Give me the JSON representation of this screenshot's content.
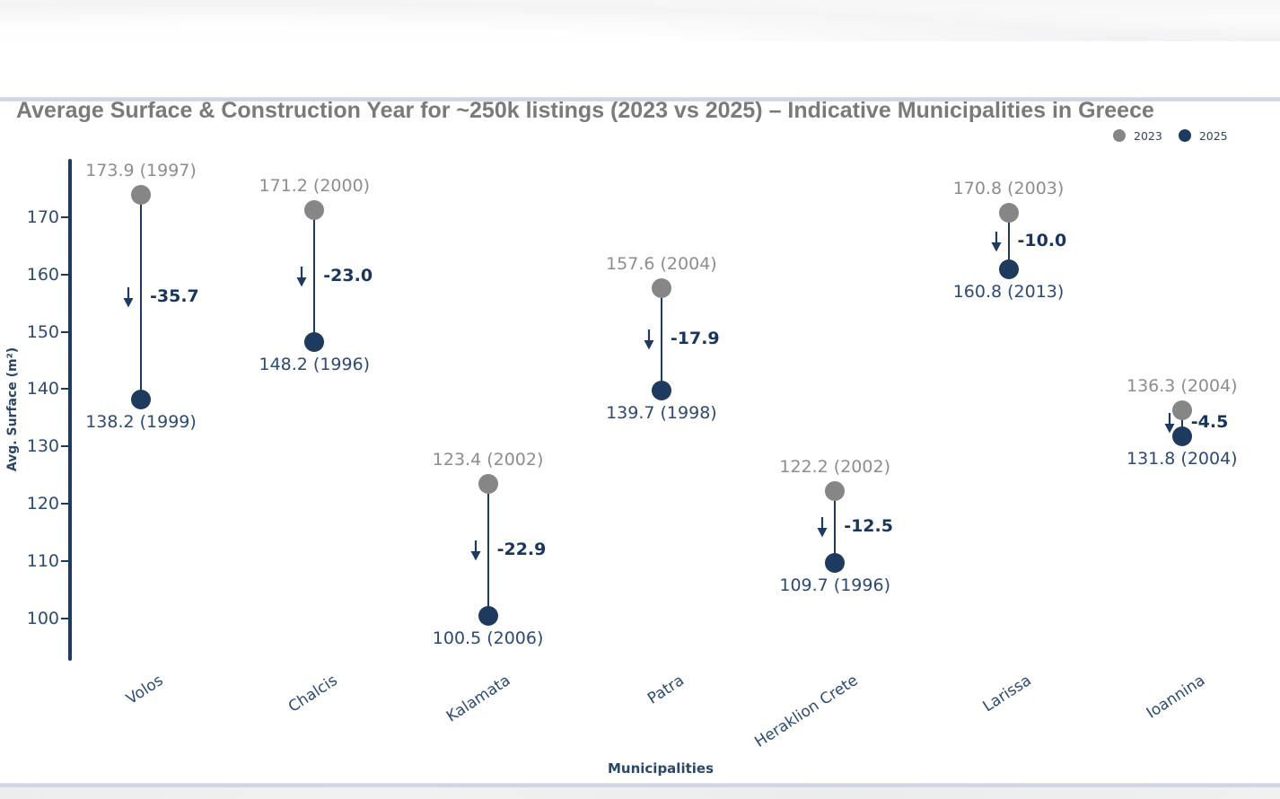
{
  "window": {
    "title": "Average Surface & Construction Year for ~250k listings (2023 vs 2025) – Indicative Municipalities in Greece"
  },
  "legend": {
    "items": [
      {
        "label": "2023",
        "color": "#868686"
      },
      {
        "label": "2025",
        "color": "#1f3a5f"
      }
    ]
  },
  "chart_data": {
    "type": "dumbbell",
    "title": "Average Surface & Construction Year for ~250k listings (2023 vs 2025) – Indicative Municipalities in Greece",
    "xlabel": "Municipalities",
    "ylabel": "Avg. Surface (m²)",
    "categories": [
      "Volos",
      "Chalcis",
      "Kalamata",
      "Patra",
      "Heraklion Crete",
      "Larissa",
      "Ioannina"
    ],
    "series": [
      {
        "name": "2023",
        "color": "#868686",
        "values": [
          173.9,
          171.2,
          123.4,
          157.6,
          122.2,
          170.8,
          136.3
        ],
        "construction_years": [
          1997,
          2000,
          2002,
          2004,
          2002,
          2003,
          2004
        ],
        "point_labels": [
          "173.9 (1997)",
          "171.2 (2000)",
          "123.4 (2002)",
          "157.6 (2004)",
          "122.2 (2002)",
          "170.8 (2003)",
          "136.3 (2004)"
        ]
      },
      {
        "name": "2025",
        "color": "#1f3a5f",
        "values": [
          138.2,
          148.2,
          100.5,
          139.7,
          109.7,
          160.8,
          131.8
        ],
        "construction_years": [
          1999,
          1996,
          2006,
          1998,
          1996,
          2013,
          2004
        ],
        "point_labels": [
          "138.2 (1999)",
          "148.2 (1996)",
          "100.5 (2006)",
          "139.7 (1998)",
          "109.7 (1996)",
          "160.8 (2013)",
          "131.8 (2004)"
        ]
      }
    ],
    "diff_labels": [
      "-35.7",
      "-23.0",
      "-22.9",
      "-17.9",
      "-12.5",
      "-10.0",
      "-4.5"
    ],
    "yticks": [
      100,
      110,
      120,
      130,
      140,
      150,
      160,
      170
    ],
    "ylim": [
      95,
      180
    ],
    "grid": false,
    "legend_position": "top-right",
    "colors": {
      "axis": "#1f3a5f",
      "navy_text": "#2c4a73",
      "gray_text": "#8d8d8d",
      "diff_text": "#17355e",
      "title_text": "#7a7a7a",
      "divider": "#ccd2e0"
    }
  }
}
